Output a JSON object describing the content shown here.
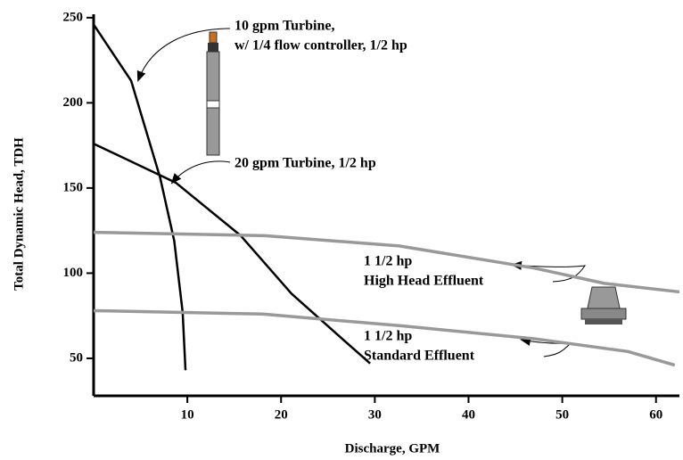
{
  "chart_data": {
    "type": "line",
    "x_label": "Discharge, GPM",
    "y_label": "Total Dynamic Head, TDH",
    "xlim": [
      0,
      62.5
    ],
    "ylim": [
      28,
      252
    ],
    "xticks": [
      10,
      20,
      30,
      40,
      50,
      60
    ],
    "yticks": [
      50,
      100,
      150,
      200,
      250
    ],
    "series": [
      {
        "color": "#000000",
        "x": [
          0,
          4,
          7.1,
          8.6,
          9.5,
          9.8
        ],
        "values": [
          246,
          213,
          156,
          119,
          77,
          43
        ]
      },
      {
        "color": "#000000",
        "x": [
          0,
          8.8,
          15.7,
          21.1,
          26,
          29.5
        ],
        "values": [
          176,
          153,
          122,
          88,
          64,
          47
        ]
      },
      {
        "color": "#999999",
        "x": [
          0,
          18.3,
          32.6,
          47,
          54.5,
          62.5
        ],
        "values": [
          124,
          122,
          116,
          103,
          94,
          89
        ]
      },
      {
        "color": "#999999",
        "x": [
          0,
          18,
          33,
          47,
          57,
          62
        ],
        "values": [
          78,
          76,
          69,
          61.5,
          54,
          46
        ]
      }
    ],
    "annotations": [
      "10 gpm Turbine,",
      "w/ 1/4 flow controller, 1/2 hp",
      "20 gpm Turbine, 1/2 hp",
      "1 1/2 hp",
      "High Head Effluent",
      "1 1/2 hp",
      "Standard Effluent"
    ]
  }
}
